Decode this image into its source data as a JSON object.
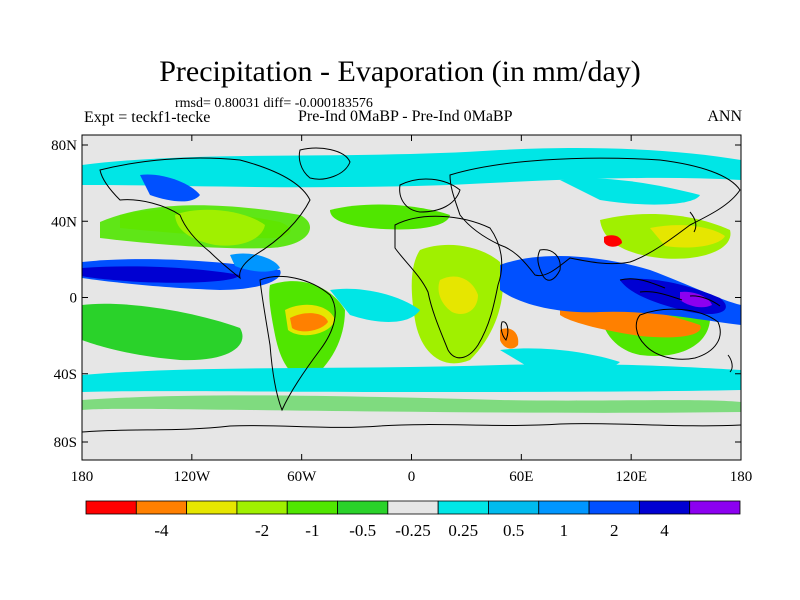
{
  "title": "Precipitation - Evaporation (in mm/day)",
  "stats": "rmsd= 0.80031 diff= -0.000183576",
  "left_label": "Expt = teckf1-tecke",
  "center_label": "Pre-Ind 0MaBP - Pre-Ind 0MaBP",
  "right_label": "ANN",
  "lat_ticks": [
    "80N",
    "40N",
    "0",
    "40S",
    "80S"
  ],
  "lon_ticks": [
    "180",
    "120W",
    "60W",
    "0",
    "60E",
    "120E",
    "180"
  ],
  "colorbar": {
    "colors": [
      "#ff0000",
      "#ff8000",
      "#e6e600",
      "#a0f000",
      "#50e600",
      "#2ad22a",
      "#e6e6e6",
      "#00e6e6",
      "#00bbee",
      "#0096ff",
      "#0050ff",
      "#0000d2",
      "#8c00f0"
    ],
    "labels": [
      "-4",
      "-2",
      "-1",
      "-0.5",
      "-0.25",
      "0.25",
      "0.5",
      "1",
      "2",
      "4"
    ]
  },
  "map": {
    "background_color": "#e6e6e6",
    "coastline_color": "#000000"
  }
}
